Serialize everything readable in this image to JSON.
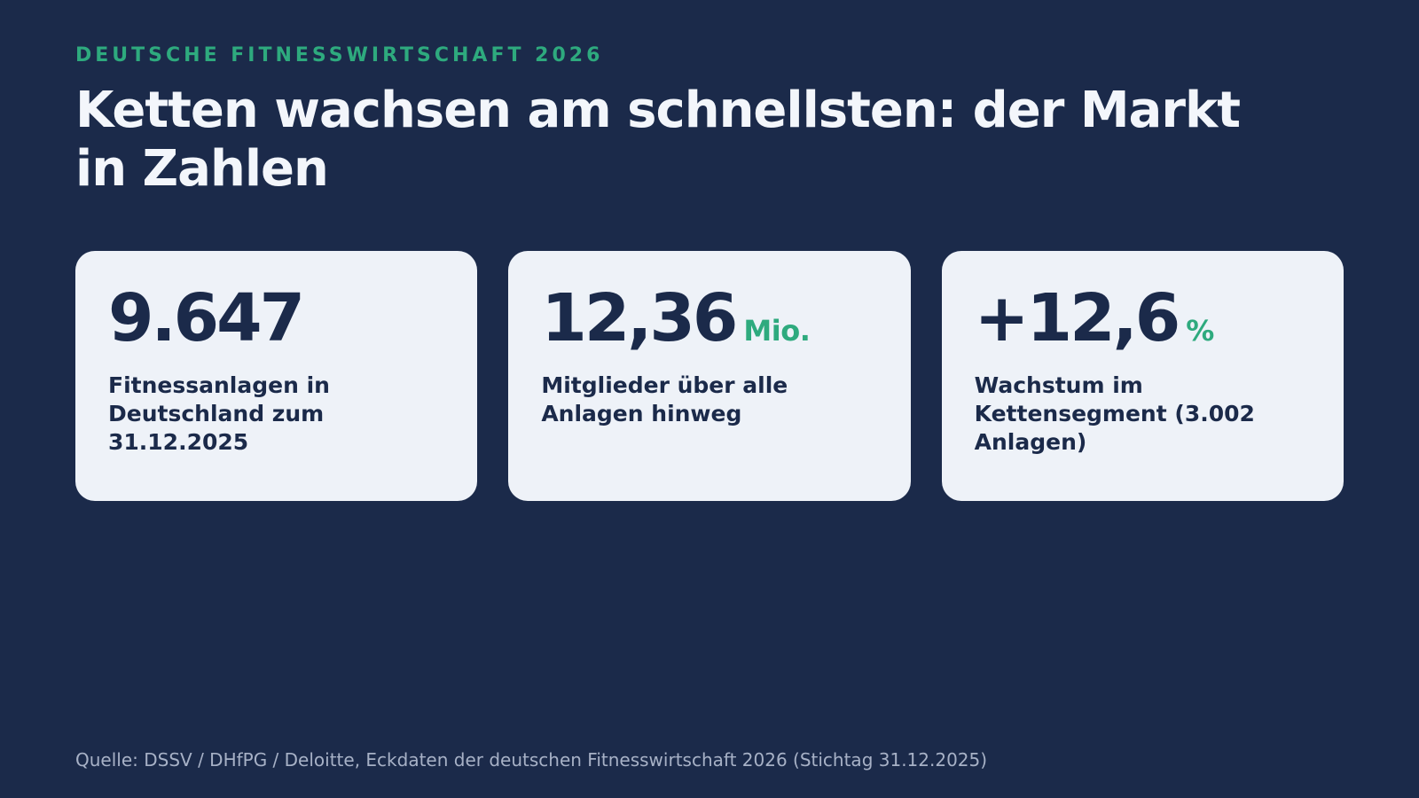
{
  "header": {
    "eyebrow": "DEUTSCHE FITNESSWIRTSCHAFT 2026",
    "title": "Ketten wachsen am schnellsten: der Markt in Zahlen"
  },
  "cards": [
    {
      "value": "9.647",
      "unit": "",
      "label": "Fitnessanlagen in Deutschland zum 31.12.2025"
    },
    {
      "value": "12,36",
      "unit": "Mio.",
      "label": "Mitglieder über alle Anlagen hinweg"
    },
    {
      "value": "+12,6",
      "unit": "%",
      "label": "Wachstum im Kettensegment (3.002 Anlagen)"
    }
  ],
  "footer": {
    "source": "Quelle: DSSV / DHfPG / Deloitte, Eckdaten der deutschen Fitnesswirtschaft 2026 (Stichtag 31.12.2025)"
  },
  "colors": {
    "background": "#1b2a4a",
    "accent": "#2eaa7e",
    "card": "#eef2f8",
    "text_dark": "#1b2a4a",
    "text_light": "#f3f6fb",
    "source_text": "#a7b1c6"
  }
}
